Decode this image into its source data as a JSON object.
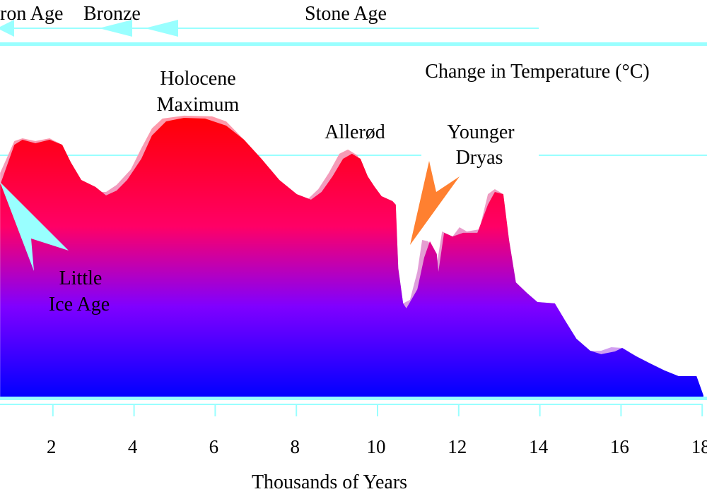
{
  "chart_data": {
    "type": "area",
    "title": "Change in Temperature (°C)",
    "xlabel": "Thousands of Years",
    "ylabel": "",
    "x_ticks": [
      2,
      4,
      6,
      8,
      10,
      12,
      14,
      16,
      18
    ],
    "xlim": [
      0.7,
      18.1
    ],
    "ylim": [
      -20,
      9.2
    ],
    "gridline_y": 0,
    "colors": {
      "axis": "#99ffff",
      "main_top": "#ff0000",
      "main_mid": "#ff0066",
      "main_low": "#8000ff",
      "main_bottom": "#0000ff",
      "light_top": "#ff9aa8",
      "light_low": "#c8a0ff",
      "little_ice_age_arrow": "#99ffff",
      "younger_dryas_arrow": "#ff8030"
    },
    "series": [
      {
        "role": "background-light",
        "points": [
          [
            0.7,
            -1.46
          ],
          [
            1.05,
            1.17
          ],
          [
            1.25,
            1.4
          ],
          [
            1.57,
            1.17
          ],
          [
            1.92,
            1.4
          ],
          [
            2.23,
            0.87
          ],
          [
            2.44,
            -0.58
          ],
          [
            2.7,
            -2.04
          ],
          [
            3.14,
            -3.03
          ],
          [
            3.31,
            -3.03
          ],
          [
            3.57,
            -2.45
          ],
          [
            3.92,
            -1.17
          ],
          [
            4.18,
            0.58
          ],
          [
            4.44,
            2.22
          ],
          [
            4.7,
            3.03
          ],
          [
            5.23,
            3.27
          ],
          [
            5.92,
            3.21
          ],
          [
            6.27,
            2.8
          ],
          [
            6.71,
            1.28
          ],
          [
            7.14,
            -0.29
          ],
          [
            7.58,
            -2.04
          ],
          [
            8.01,
            -3.21
          ],
          [
            8.27,
            -3.67
          ],
          [
            8.54,
            -2.8
          ],
          [
            8.8,
            -1.46
          ],
          [
            9.06,
            0.12
          ],
          [
            9.27,
            0.47
          ],
          [
            9.5,
            0.0
          ],
          [
            9.76,
            -1.75
          ],
          [
            9.93,
            -2.62
          ],
          [
            10.1,
            -3.38
          ],
          [
            10.37,
            -3.79
          ],
          [
            10.45,
            -4.08
          ],
          [
            10.51,
            -9.33
          ],
          [
            10.63,
            -12.24
          ],
          [
            10.8,
            -11.95
          ],
          [
            10.98,
            -9.62
          ],
          [
            11.1,
            -7.0
          ],
          [
            11.24,
            -7.11
          ],
          [
            11.36,
            -7.58
          ],
          [
            11.46,
            -9.04
          ],
          [
            11.59,
            -6.3
          ],
          [
            11.85,
            -6.71
          ],
          [
            12.02,
            -5.95
          ],
          [
            12.2,
            -6.3
          ],
          [
            12.51,
            -6.12
          ],
          [
            12.72,
            -3.21
          ],
          [
            12.89,
            -2.8
          ],
          [
            13.1,
            -3.21
          ],
          [
            13.24,
            -7.0
          ],
          [
            13.41,
            -10.5
          ],
          [
            13.68,
            -11.37
          ],
          [
            13.94,
            -12.13
          ],
          [
            14.37,
            -12.24
          ],
          [
            14.63,
            -13.7
          ],
          [
            14.9,
            -15.16
          ],
          [
            15.24,
            -16.15
          ],
          [
            15.51,
            -16.15
          ],
          [
            15.76,
            -15.86
          ],
          [
            16.03,
            -15.92
          ],
          [
            16.38,
            -16.62
          ],
          [
            16.72,
            -17.2
          ],
          [
            17.07,
            -17.78
          ],
          [
            17.42,
            -18.25
          ],
          [
            17.86,
            -18.25
          ],
          [
            18.03,
            -19.83
          ]
        ]
      },
      {
        "role": "main",
        "points": [
          [
            0.7,
            -2.45
          ],
          [
            1.05,
            0.87
          ],
          [
            1.25,
            1.28
          ],
          [
            1.57,
            0.99
          ],
          [
            1.92,
            1.28
          ],
          [
            2.23,
            0.87
          ],
          [
            2.44,
            -0.58
          ],
          [
            2.7,
            -2.04
          ],
          [
            3.05,
            -2.62
          ],
          [
            3.31,
            -3.32
          ],
          [
            3.57,
            -2.92
          ],
          [
            3.83,
            -2.04
          ],
          [
            4.18,
            -0.29
          ],
          [
            4.44,
            1.63
          ],
          [
            4.79,
            2.8
          ],
          [
            5.23,
            3.09
          ],
          [
            5.75,
            3.03
          ],
          [
            6.27,
            2.45
          ],
          [
            6.71,
            1.28
          ],
          [
            7.14,
            -0.29
          ],
          [
            7.58,
            -2.04
          ],
          [
            8.01,
            -3.21
          ],
          [
            8.36,
            -3.67
          ],
          [
            8.62,
            -3.03
          ],
          [
            8.89,
            -1.75
          ],
          [
            9.15,
            -0.29
          ],
          [
            9.37,
            0.12
          ],
          [
            9.58,
            -0.29
          ],
          [
            9.76,
            -1.75
          ],
          [
            9.93,
            -2.62
          ],
          [
            10.1,
            -3.38
          ],
          [
            10.37,
            -3.79
          ],
          [
            10.45,
            -4.08
          ],
          [
            10.51,
            -9.33
          ],
          [
            10.63,
            -12.24
          ],
          [
            10.71,
            -12.65
          ],
          [
            10.98,
            -11.08
          ],
          [
            11.15,
            -8.45
          ],
          [
            11.29,
            -7.11
          ],
          [
            11.46,
            -8.16
          ],
          [
            11.5,
            -9.62
          ],
          [
            11.64,
            -6.41
          ],
          [
            11.85,
            -6.71
          ],
          [
            12.11,
            -6.41
          ],
          [
            12.46,
            -6.41
          ],
          [
            12.72,
            -4.08
          ],
          [
            12.89,
            -3.03
          ],
          [
            13.1,
            -3.21
          ],
          [
            13.24,
            -7.0
          ],
          [
            13.41,
            -10.5
          ],
          [
            13.68,
            -11.37
          ],
          [
            13.94,
            -12.13
          ],
          [
            14.37,
            -12.24
          ],
          [
            14.63,
            -13.7
          ],
          [
            14.9,
            -15.16
          ],
          [
            15.24,
            -16.15
          ],
          [
            15.51,
            -16.44
          ],
          [
            15.85,
            -16.21
          ],
          [
            16.03,
            -15.92
          ],
          [
            16.38,
            -16.62
          ],
          [
            16.72,
            -17.2
          ],
          [
            17.07,
            -17.78
          ],
          [
            17.42,
            -18.25
          ],
          [
            17.86,
            -18.25
          ],
          [
            18.03,
            -19.83
          ]
        ]
      }
    ],
    "annotations": {
      "holocene_1": "Holocene",
      "holocene_2": "Maximum",
      "allerod": "Allerød",
      "younger_1": "Younger",
      "younger_2": "Dryas",
      "little_1": "Little",
      "little_2": "Ice Age"
    },
    "periods": {
      "iron": "ron Age",
      "bronze": "Bronze",
      "stone": "Stone Age"
    }
  }
}
